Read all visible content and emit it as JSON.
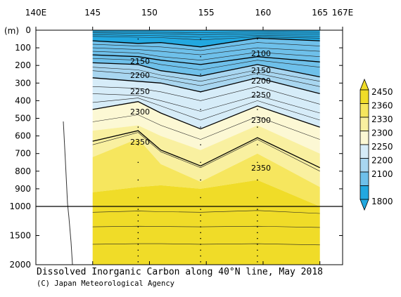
{
  "chart_data": {
    "type": "contour",
    "title": "Dissolved Inorganic Carbon along 40°N line, May 2018",
    "credit": "(C) Japan Meteorological Agency",
    "x_axis": {
      "ticks": [
        "140E",
        "145",
        "150",
        "155",
        "160",
        "165",
        "167E"
      ],
      "range": [
        140,
        167
      ]
    },
    "y_axis": {
      "unit_label": "(m)",
      "upper_ticks": [
        0,
        100,
        200,
        300,
        400,
        500,
        600,
        700,
        800,
        900,
        1000
      ],
      "lower_ticks": [
        1000,
        1500,
        2000
      ],
      "break_depth": 1000
    },
    "colorbar": {
      "levels": [
        "2450",
        "2360",
        "2330",
        "2300",
        "2250",
        "2200",
        "2100",
        "1800"
      ],
      "colors": {
        "a": "#f0dc28",
        "b": "#f6e65e",
        "c": "#f9f0a0",
        "d": "#fcf8d4",
        "e": "#d6ecf8",
        "f": "#a8d6f0",
        "g": "#6ec0ea",
        "h": "#22a8e0"
      }
    },
    "contour_labels": [
      "2100",
      "2150",
      "2150",
      "2200",
      "2200",
      "2250",
      "2250",
      "2300",
      "2300",
      "2350",
      "2350"
    ],
    "stations_lon": [
      149,
      154.5,
      159.5
    ],
    "data_lon_range": [
      145,
      165
    ]
  }
}
